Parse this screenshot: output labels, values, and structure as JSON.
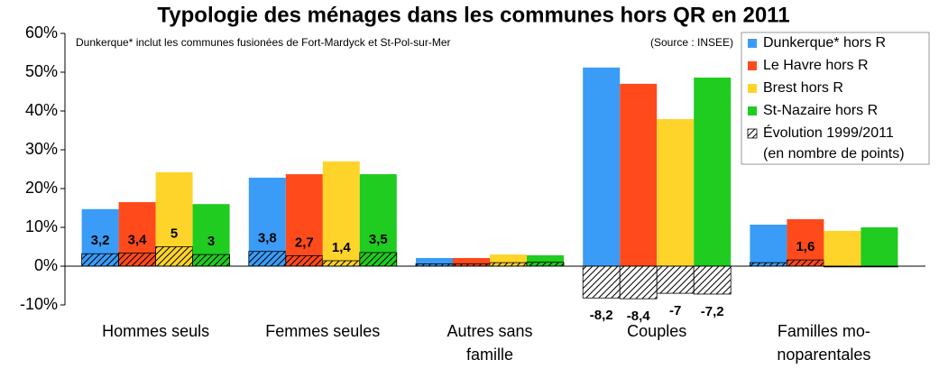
{
  "chart_data": {
    "type": "bar",
    "title": "Typologie des ménages dans les communes hors QR en 2011",
    "annotation": "Dunkerque* inclut les communes fusionées de Fort-Mardyck et St-Pol-sur-Mer",
    "source": "(Source : INSEE)",
    "categories": [
      [
        "Hommes seuls"
      ],
      [
        "Femmes seules"
      ],
      [
        "Autres sans",
        "famille"
      ],
      [
        "Couples"
      ],
      [
        "Familles mo-",
        "noparentales"
      ]
    ],
    "series": [
      {
        "name": "Dunkerque* hors R",
        "color": "#3a9cf6",
        "values": [
          14.7,
          22.8,
          2.1,
          51.2,
          10.7
        ],
        "evolution": [
          3.2,
          3.8,
          0.6,
          -8.2,
          0.9
        ],
        "evolution_labels": [
          "3,2",
          "3,8",
          null,
          "-8,2",
          null
        ]
      },
      {
        "name": "Le Havre hors R",
        "color": "#ff4a1c",
        "values": [
          16.5,
          23.7,
          2.1,
          47.0,
          12.1
        ],
        "evolution": [
          3.4,
          2.7,
          0.6,
          -8.4,
          1.6
        ],
        "evolution_labels": [
          "3,4",
          "2,7",
          null,
          "-8,4",
          "1,6"
        ]
      },
      {
        "name": "Brest hors R",
        "color": "#ffd42a",
        "values": [
          24.2,
          27.0,
          3.0,
          37.9,
          9.1
        ],
        "evolution": [
          5,
          1.4,
          0.9,
          -7,
          -0.2
        ],
        "evolution_labels": [
          "5",
          "1,4",
          null,
          "-7",
          null
        ]
      },
      {
        "name": "St-Nazaire hors R",
        "color": "#1fcc1f",
        "values": [
          16.0,
          23.7,
          2.8,
          48.6,
          10.0
        ],
        "evolution": [
          3,
          3.5,
          1.0,
          -7.2,
          -0.2
        ],
        "evolution_labels": [
          "3",
          "3,5",
          null,
          "-7,2",
          null
        ]
      }
    ],
    "evolution_legend": [
      "Évolution 1999/2011",
      "(en nombre de points)"
    ],
    "ylim": [
      -10,
      60
    ],
    "yticks": [
      {
        "value": -10,
        "label": "-10%"
      },
      {
        "value": 0,
        "label": "0%"
      },
      {
        "value": 10,
        "label": "10%"
      },
      {
        "value": 20,
        "label": "20%"
      },
      {
        "value": 30,
        "label": "30%"
      },
      {
        "value": 40,
        "label": "40%"
      },
      {
        "value": 50,
        "label": "50%"
      },
      {
        "value": 60,
        "label": "60%"
      }
    ],
    "legend": "top-right"
  }
}
